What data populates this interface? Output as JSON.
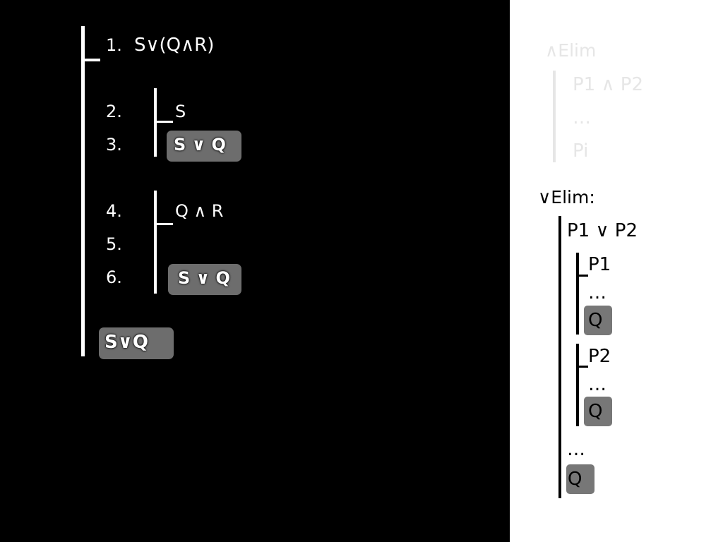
{
  "proof": {
    "lines": [
      {
        "num": "1.",
        "text": "S∨(Q∧R)"
      },
      {
        "num": "2.",
        "text": "S"
      },
      {
        "num": "3.",
        "text": "S ∨ Q"
      },
      {
        "num": "4.",
        "text": "Q ∧ R"
      },
      {
        "num": "5.",
        "text": ""
      },
      {
        "num": "6.",
        "text": "S ∨ Q"
      }
    ],
    "conclusion": "S∨Q"
  },
  "rules": {
    "and_elim": {
      "title": "∧Elim",
      "premise": "P1 ∧ P2",
      "dots": "…",
      "result": "Pi"
    },
    "or_elim": {
      "title": "∨Elim:",
      "premise": "P1 ∨ P2",
      "case1": {
        "assume": "P1",
        "dots": "…",
        "result": "Q"
      },
      "case2": {
        "assume": "P2",
        "dots": "…",
        "result": "Q"
      },
      "dots": "…",
      "result": "Q"
    }
  },
  "colors": {
    "left_background": "#000000",
    "right_background": "#ffffff",
    "highlight": "#6d6d6d",
    "faded_text": "#e6e6e6"
  }
}
